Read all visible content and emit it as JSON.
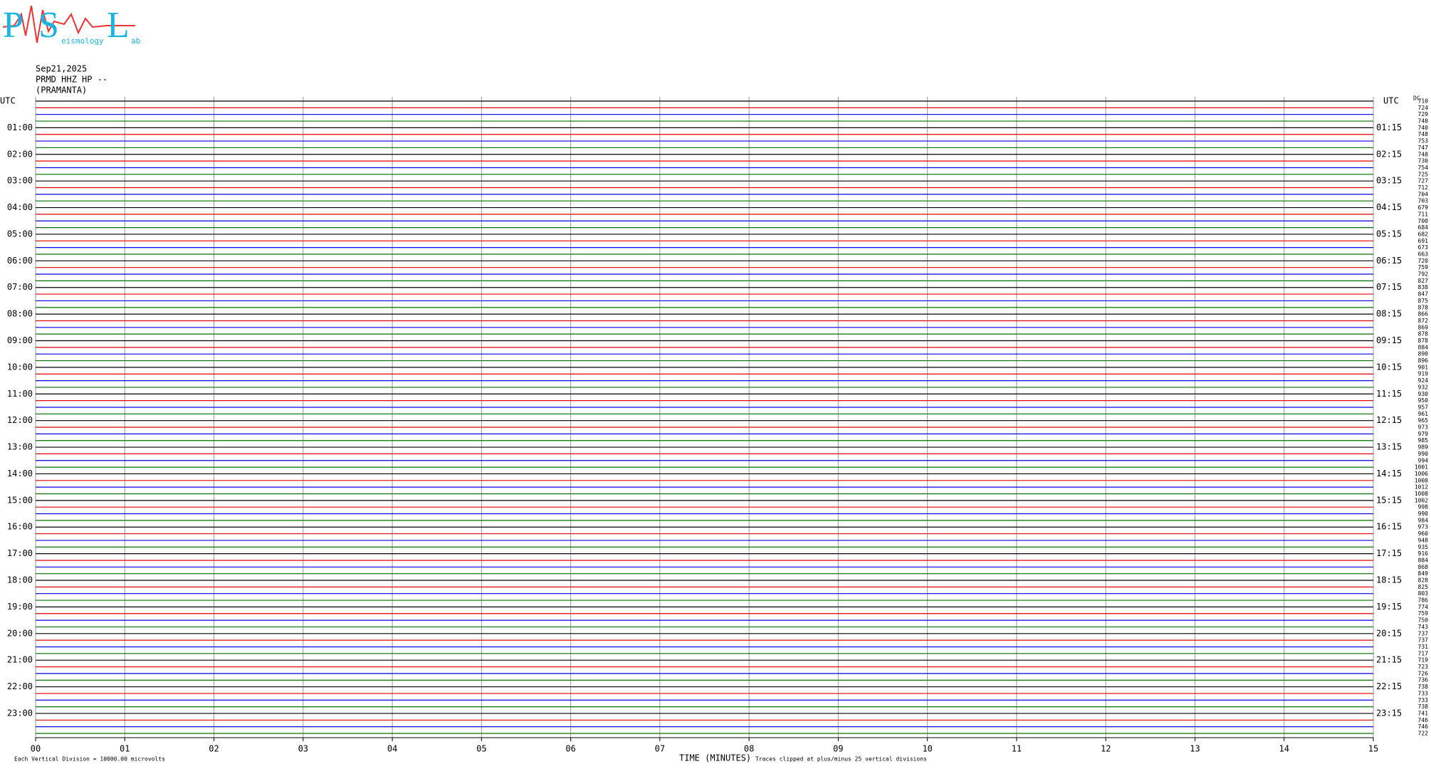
{
  "logo": {
    "letters": [
      "P",
      "S",
      "L"
    ],
    "small": [
      "eismology",
      "ab"
    ]
  },
  "chart_data": {
    "type": "helicorder",
    "date": "Sep21,2025",
    "station": "PRMD HHZ HP --",
    "station_name": "(PRAMANTA)",
    "timezone_label": "UTC",
    "xlabel": "TIME (MINUTES)",
    "scale_note": "Each Vertical Division = 10000.00 microvolts",
    "clip_note": "Traces clipped at plus/minus 25 vertical divisions",
    "dc_header": "DC",
    "xlim": [
      0,
      15
    ],
    "xticks": [
      {
        "value": 0,
        "label": "00"
      },
      {
        "value": 1,
        "label": "01"
      },
      {
        "value": 2,
        "label": "02"
      },
      {
        "value": 3,
        "label": "03"
      },
      {
        "value": 4,
        "label": "04"
      },
      {
        "value": 5,
        "label": "05"
      },
      {
        "value": 6,
        "label": "06"
      },
      {
        "value": 7,
        "label": "07"
      },
      {
        "value": 8,
        "label": "08"
      },
      {
        "value": 9,
        "label": "09"
      },
      {
        "value": 10,
        "label": "10"
      },
      {
        "value": 11,
        "label": "11"
      },
      {
        "value": 12,
        "label": "12"
      },
      {
        "value": 13,
        "label": "13"
      },
      {
        "value": 14,
        "label": "14"
      },
      {
        "value": 15,
        "label": "15"
      }
    ],
    "grid": true,
    "trace_colors": [
      "#000000",
      "#e00000",
      "#0000e0",
      "#007000"
    ],
    "left_labels": [
      "01:00",
      "02:00",
      "03:00",
      "04:00",
      "05:00",
      "06:00",
      "07:00",
      "08:00",
      "09:00",
      "10:00",
      "11:00",
      "12:00",
      "13:00",
      "14:00",
      "15:00",
      "16:00",
      "17:00",
      "18:00",
      "19:00",
      "20:00",
      "21:00",
      "22:00",
      "23:00"
    ],
    "right_labels": [
      "01:15",
      "02:15",
      "03:15",
      "04:15",
      "05:15",
      "06:15",
      "07:15",
      "08:15",
      "09:15",
      "10:15",
      "11:15",
      "12:15",
      "13:15",
      "14:15",
      "15:15",
      "16:15",
      "17:15",
      "18:15",
      "19:15",
      "20:15",
      "21:15",
      "22:15",
      "23:15"
    ],
    "dc_offsets": [
      710,
      724,
      729,
      748,
      740,
      748,
      753,
      747,
      748,
      730,
      754,
      725,
      727,
      712,
      704,
      703,
      679,
      711,
      700,
      684,
      682,
      691,
      673,
      663,
      720,
      759,
      792,
      827,
      838,
      847,
      875,
      878,
      866,
      872,
      869,
      878,
      878,
      884,
      890,
      896,
      901,
      919,
      924,
      932,
      930,
      950,
      957,
      961,
      965,
      973,
      979,
      985,
      989,
      990,
      994,
      1001,
      1006,
      1008,
      1012,
      1008,
      1002,
      998,
      990,
      984,
      973,
      960,
      948,
      935,
      916,
      884,
      868,
      849,
      828,
      825,
      803,
      786,
      774,
      759,
      750,
      743,
      737,
      737,
      731,
      717,
      719,
      723,
      726,
      736,
      738,
      733,
      733,
      738,
      741,
      746,
      746,
      722
    ]
  }
}
